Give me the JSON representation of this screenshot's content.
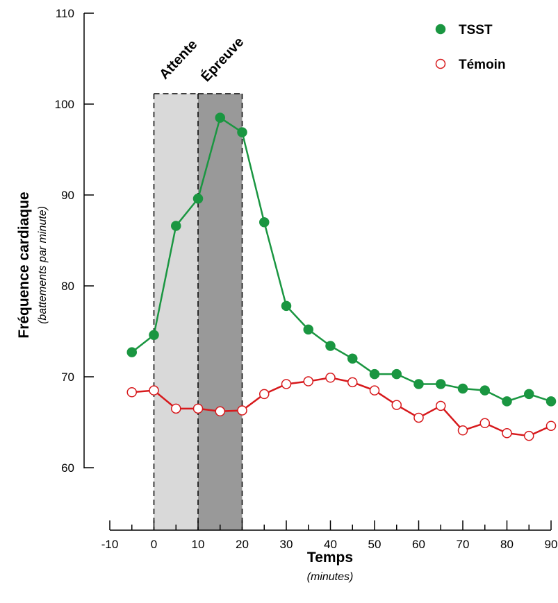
{
  "chart_data": {
    "type": "line",
    "xlabel": "Temps",
    "xlabel_unit": "(minutes)",
    "ylabel": "Fréquence cardiaque",
    "ylabel_unit": "(battements par minute)",
    "xlim": [
      -10,
      90
    ],
    "ylim": [
      50,
      110
    ],
    "x_ticks": [
      -10,
      0,
      10,
      20,
      30,
      40,
      50,
      60,
      70,
      80,
      90
    ],
    "y_ticks": [
      60,
      70,
      80,
      90,
      100,
      110
    ],
    "grid": false,
    "legend_position": "top-right",
    "phases": [
      {
        "label": "Attente",
        "x_start": 0,
        "x_end": 10,
        "color": "#d9d9d9"
      },
      {
        "label": "Épreuve",
        "x_start": 10,
        "x_end": 20,
        "color": "#999999"
      }
    ],
    "series": [
      {
        "name": "TSST",
        "color": "#1a9641",
        "marker": "filled-circle",
        "x": [
          -5,
          0,
          5,
          10,
          15,
          20,
          25,
          30,
          35,
          40,
          45,
          50,
          55,
          60,
          65,
          70,
          75,
          80,
          85,
          90
        ],
        "values": [
          72.7,
          74.6,
          86.6,
          89.6,
          98.5,
          96.9,
          87.0,
          77.8,
          75.2,
          73.4,
          72.0,
          70.3,
          70.3,
          69.2,
          69.2,
          68.7,
          68.5,
          67.3,
          68.1,
          67.3
        ]
      },
      {
        "name": "Témoin",
        "color": "#d7191c",
        "marker": "open-circle",
        "x": [
          -5,
          0,
          5,
          10,
          15,
          20,
          25,
          30,
          35,
          40,
          45,
          50,
          55,
          60,
          65,
          70,
          75,
          80,
          85,
          90
        ],
        "values": [
          68.3,
          68.5,
          66.5,
          66.5,
          66.2,
          66.3,
          68.1,
          69.2,
          69.5,
          69.9,
          69.4,
          68.5,
          66.9,
          65.5,
          66.8,
          64.1,
          64.9,
          63.8,
          63.5,
          64.6
        ]
      }
    ]
  }
}
